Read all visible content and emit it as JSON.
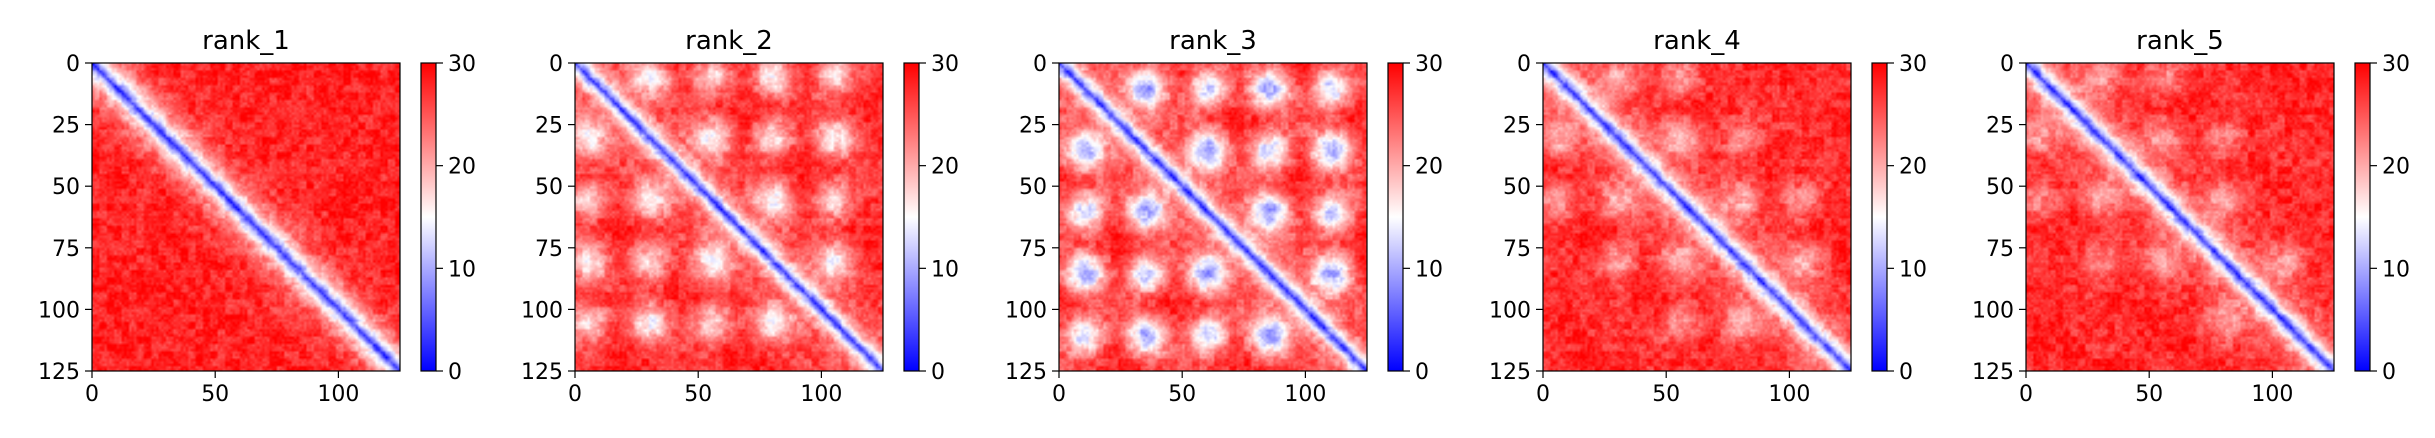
{
  "chart_data": [
    {
      "type": "heatmap",
      "title": "rank_1",
      "xlim": [
        0,
        125
      ],
      "ylim": [
        125,
        0
      ],
      "xticks": [
        0,
        50,
        100
      ],
      "yticks": [
        0,
        25,
        50,
        75,
        100,
        125
      ],
      "colorbar": {
        "range": [
          0,
          30
        ],
        "ticks": [
          0,
          10,
          20,
          30
        ],
        "colormap": "bwr"
      },
      "band_width": 7,
      "bump_amplitude": 0,
      "bumps": []
    },
    {
      "type": "heatmap",
      "title": "rank_2",
      "xlim": [
        0,
        125
      ],
      "ylim": [
        125,
        0
      ],
      "xticks": [
        0,
        50,
        100
      ],
      "yticks": [
        0,
        25,
        50,
        75,
        100,
        125
      ],
      "colorbar": {
        "range": [
          0,
          30
        ],
        "ticks": [
          0,
          10,
          20,
          30
        ],
        "colormap": "bwr"
      },
      "band_width": 6,
      "bump_amplitude": 11,
      "bumps": [
        [
          30,
          5
        ],
        [
          55,
          30
        ],
        [
          80,
          55
        ],
        [
          105,
          80
        ],
        [
          55,
          5
        ],
        [
          80,
          30
        ],
        [
          105,
          55
        ],
        [
          80,
          5
        ],
        [
          105,
          30
        ],
        [
          105,
          5
        ]
      ]
    },
    {
      "type": "heatmap",
      "title": "rank_3",
      "xlim": [
        0,
        125
      ],
      "ylim": [
        125,
        0
      ],
      "xticks": [
        0,
        50,
        100
      ],
      "yticks": [
        0,
        25,
        50,
        75,
        100,
        125
      ],
      "colorbar": {
        "range": [
          0,
          30
        ],
        "ticks": [
          0,
          10,
          20,
          30
        ],
        "colormap": "bwr"
      },
      "band_width": 6,
      "bump_amplitude": 16,
      "bumps": [
        [
          35,
          10
        ],
        [
          60,
          35
        ],
        [
          85,
          60
        ],
        [
          110,
          85
        ],
        [
          60,
          10
        ],
        [
          85,
          35
        ],
        [
          110,
          60
        ],
        [
          85,
          10
        ],
        [
          110,
          35
        ],
        [
          110,
          10
        ]
      ]
    },
    {
      "type": "heatmap",
      "title": "rank_4",
      "xlim": [
        0,
        125
      ],
      "ylim": [
        125,
        0
      ],
      "xticks": [
        0,
        50,
        100
      ],
      "yticks": [
        0,
        25,
        50,
        75,
        100,
        125
      ],
      "colorbar": {
        "range": [
          0,
          30
        ],
        "ticks": [
          0,
          10,
          20,
          30
        ],
        "colormap": "bwr"
      },
      "band_width": 6.5,
      "bump_amplitude": 7,
      "bumps": [
        [
          30,
          5
        ],
        [
          55,
          30
        ],
        [
          80,
          55
        ],
        [
          105,
          80
        ],
        [
          55,
          5
        ],
        [
          80,
          30
        ],
        [
          105,
          55
        ]
      ]
    },
    {
      "type": "heatmap",
      "title": "rank_5",
      "xlim": [
        0,
        125
      ],
      "ylim": [
        125,
        0
      ],
      "xticks": [
        0,
        50,
        100
      ],
      "yticks": [
        0,
        25,
        50,
        75,
        100,
        125
      ],
      "colorbar": {
        "range": [
          0,
          30
        ],
        "ticks": [
          0,
          10,
          20,
          30
        ],
        "colormap": "bwr"
      },
      "band_width": 6.5,
      "bump_amplitude": 6,
      "bumps": [
        [
          30,
          5
        ],
        [
          55,
          30
        ],
        [
          80,
          55
        ],
        [
          105,
          80
        ],
        [
          55,
          5
        ],
        [
          80,
          30
        ]
      ]
    }
  ]
}
